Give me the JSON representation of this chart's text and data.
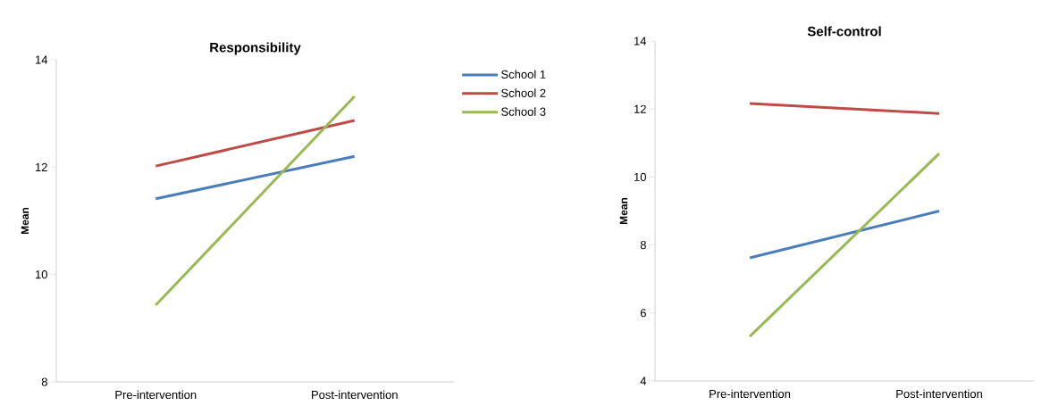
{
  "chart_data": [
    {
      "type": "line",
      "title": "Responsibility",
      "ylabel": "Mean",
      "categories": [
        "Pre-intervention",
        "Post-intervention"
      ],
      "ylim": [
        8,
        14
      ],
      "yticks": [
        8,
        10,
        12,
        14
      ],
      "legend": "right",
      "series": [
        {
          "name": "School 1",
          "color": "#4a7ebb",
          "values": [
            11.41,
            12.2
          ]
        },
        {
          "name": "School 2",
          "color": "#be4b48",
          "values": [
            12.02,
            12.87
          ]
        },
        {
          "name": "School 3",
          "color": "#98b954",
          "values": [
            9.43,
            13.32
          ]
        }
      ]
    },
    {
      "type": "line",
      "title": "Self-control",
      "ylabel": "Mean",
      "categories": [
        "Pre-intervention",
        "Post-intervention"
      ],
      "ylim": [
        4,
        14
      ],
      "yticks": [
        4,
        6,
        8,
        10,
        12,
        14
      ],
      "series": [
        {
          "color": "#4a7ebb",
          "values": [
            7.62,
            9.0
          ]
        },
        {
          "color": "#be4b48",
          "values": [
            12.16,
            11.87
          ]
        },
        {
          "color": "#98b954",
          "values": [
            5.31,
            10.69
          ]
        }
      ]
    }
  ]
}
